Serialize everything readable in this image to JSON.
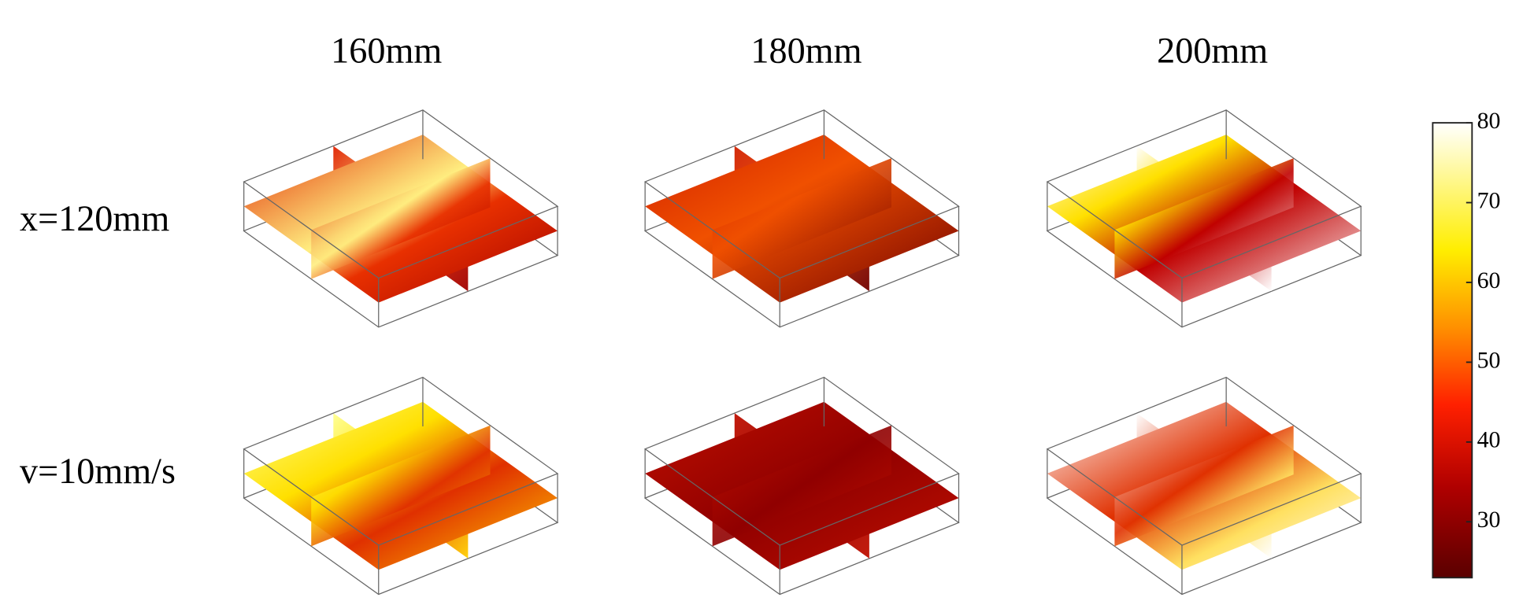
{
  "chart_data": {
    "type": "slice-panels",
    "columns": [
      "160mm",
      "180mm",
      "200mm"
    ],
    "rows": [
      "x=120mm",
      "v=10mm/s"
    ],
    "colorbar": {
      "lim": [
        23,
        80
      ],
      "ticks": [
        30,
        40,
        50,
        60,
        70,
        80
      ]
    }
  }
}
